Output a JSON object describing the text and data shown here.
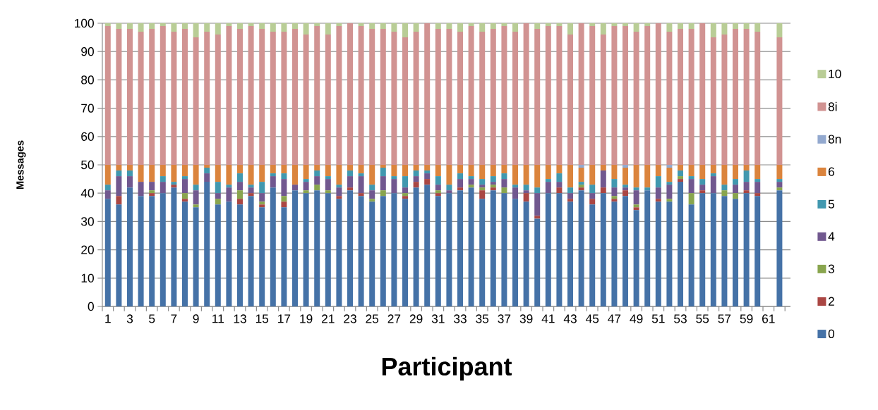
{
  "chart_data": {
    "type": "bar",
    "stacked": true,
    "xlabel": "Participant",
    "ylabel": "Messages",
    "categories": [
      "1",
      null,
      "3",
      null,
      "5",
      null,
      "7",
      null,
      "9",
      null,
      "11",
      null,
      "13",
      null,
      "15",
      null,
      "17",
      null,
      "19",
      null,
      "21",
      null,
      "23",
      null,
      "25",
      null,
      "27",
      null,
      "29",
      null,
      "31",
      null,
      "33",
      null,
      "35",
      null,
      "37",
      null,
      "39",
      null,
      "41",
      null,
      "43",
      null,
      "45",
      null,
      "47",
      null,
      "49",
      null,
      "51",
      null,
      "53",
      null,
      "55",
      null,
      "57",
      null,
      "59",
      null,
      "61",
      null
    ],
    "ylim": [
      0,
      100
    ],
    "yticks": [
      0,
      10,
      20,
      30,
      40,
      50,
      60,
      70,
      80,
      90,
      100
    ],
    "grid": "y",
    "legend": "right",
    "series": [
      {
        "name": "0",
        "color": "#4572a7",
        "values": [
          38,
          36,
          42,
          39,
          39,
          40,
          42,
          37,
          35,
          44,
          36,
          37,
          36,
          39,
          35,
          42,
          35,
          41,
          40,
          41,
          40,
          38,
          41,
          39,
          37,
          39,
          40,
          38,
          42,
          43,
          39,
          40,
          41,
          42,
          38,
          41,
          40,
          38,
          37,
          31,
          40,
          40,
          37,
          41,
          36,
          40,
          37,
          39,
          34,
          41,
          37,
          37,
          44,
          36,
          40,
          40,
          39,
          38,
          40,
          39,
          null,
          41
        ]
      },
      {
        "name": "2",
        "color": "#aa4643",
        "values": [
          0,
          3,
          0,
          0,
          1,
          0,
          1,
          1,
          0,
          0,
          0,
          0,
          2,
          1,
          1,
          0,
          2,
          0,
          0,
          0,
          0,
          1,
          1,
          1,
          0,
          0,
          0,
          1,
          2,
          2,
          1,
          0,
          1,
          0,
          3,
          1,
          0,
          0,
          3,
          1,
          0,
          2,
          1,
          1,
          2,
          2,
          1,
          2,
          1,
          0,
          1,
          0,
          1,
          0,
          1,
          0,
          0,
          0,
          1,
          1,
          null,
          0
        ]
      },
      {
        "name": "3",
        "color": "#89a54e",
        "values": [
          0,
          0,
          0,
          0,
          1,
          0,
          0,
          2,
          1,
          0,
          2,
          0,
          3,
          0,
          1,
          0,
          2,
          0,
          1,
          2,
          1,
          0,
          0,
          0,
          1,
          2,
          0,
          1,
          0,
          0,
          1,
          0,
          0,
          1,
          1,
          1,
          2,
          0,
          0,
          0,
          0,
          0,
          0,
          1,
          0,
          0,
          1,
          0,
          1,
          0,
          0,
          1,
          1,
          4,
          0,
          0,
          2,
          2,
          0,
          0,
          null,
          1
        ]
      },
      {
        "name": "4",
        "color": "#71588f",
        "values": [
          3,
          7,
          4,
          5,
          3,
          4,
          0,
          5,
          5,
          3,
          2,
          5,
          3,
          2,
          3,
          4,
          6,
          2,
          3,
          3,
          4,
          3,
          4,
          6,
          3,
          5,
          5,
          2,
          2,
          2,
          2,
          1,
          3,
          2,
          1,
          1,
          3,
          4,
          1,
          8,
          4,
          2,
          2,
          0,
          2,
          6,
          3,
          1,
          5,
          0,
          4,
          5,
          0,
          5,
          2,
          6,
          0,
          3,
          3,
          4,
          null,
          2
        ]
      },
      {
        "name": "5",
        "color": "#4198af",
        "values": [
          2,
          2,
          2,
          0,
          0,
          2,
          1,
          1,
          2,
          2,
          4,
          1,
          3,
          1,
          4,
          1,
          2,
          0,
          1,
          2,
          1,
          1,
          2,
          1,
          2,
          3,
          1,
          4,
          2,
          1,
          3,
          2,
          2,
          1,
          2,
          2,
          2,
          1,
          2,
          2,
          1,
          3,
          2,
          1,
          3,
          0,
          3,
          1,
          1,
          1,
          4,
          1,
          2,
          1,
          2,
          1,
          2,
          2,
          4,
          1,
          null,
          1
        ]
      },
      {
        "name": "6",
        "color": "#db843d",
        "values": [
          7,
          2,
          2,
          6,
          6,
          4,
          6,
          4,
          7,
          1,
          6,
          7,
          3,
          7,
          6,
          3,
          3,
          7,
          5,
          2,
          4,
          7,
          2,
          3,
          7,
          1,
          4,
          4,
          2,
          2,
          4,
          7,
          3,
          4,
          5,
          4,
          3,
          7,
          7,
          8,
          5,
          3,
          8,
          5,
          7,
          2,
          5,
          6,
          8,
          8,
          4,
          5,
          2,
          4,
          5,
          3,
          7,
          5,
          2,
          5,
          null,
          5
        ]
      },
      {
        "name": "8n",
        "color": "#93a9cf",
        "values": [
          0,
          0,
          0,
          0,
          0,
          0,
          0,
          0,
          0,
          0,
          0,
          0,
          0,
          0,
          0,
          0,
          0,
          0,
          0,
          0,
          0,
          0,
          0,
          0,
          0,
          0,
          0,
          0,
          0,
          0,
          0,
          0,
          0,
          0,
          0,
          0,
          0,
          0,
          0,
          0,
          0,
          0,
          0,
          1,
          0,
          0,
          0,
          1,
          0,
          0,
          0,
          1,
          0,
          0,
          0,
          0,
          0,
          0,
          0,
          0,
          null,
          0
        ]
      },
      {
        "name": "8i",
        "color": "#d19392",
        "values": [
          49,
          48,
          48,
          47,
          48,
          49,
          47,
          48,
          45,
          47,
          46,
          49,
          48,
          49,
          48,
          47,
          47,
          48,
          46,
          49,
          46,
          49,
          50,
          49,
          48,
          48,
          47,
          45,
          47,
          50,
          48,
          48,
          47,
          49,
          47,
          48,
          49,
          47,
          50,
          48,
          49,
          49,
          46,
          50,
          49,
          46,
          49,
          49,
          47,
          49,
          50,
          47,
          48,
          48,
          50,
          45,
          46,
          48,
          48,
          47,
          null,
          45
        ]
      },
      {
        "name": "10",
        "color": "#b9cd96",
        "values": [
          1,
          2,
          2,
          3,
          2,
          1,
          3,
          2,
          5,
          3,
          4,
          1,
          2,
          1,
          2,
          3,
          3,
          2,
          4,
          1,
          4,
          1,
          0,
          1,
          2,
          2,
          3,
          5,
          3,
          0,
          2,
          2,
          3,
          1,
          3,
          2,
          1,
          3,
          0,
          2,
          1,
          1,
          4,
          0,
          1,
          4,
          1,
          1,
          3,
          1,
          0,
          3,
          2,
          2,
          0,
          5,
          4,
          2,
          2,
          3,
          null,
          5
        ]
      }
    ]
  }
}
